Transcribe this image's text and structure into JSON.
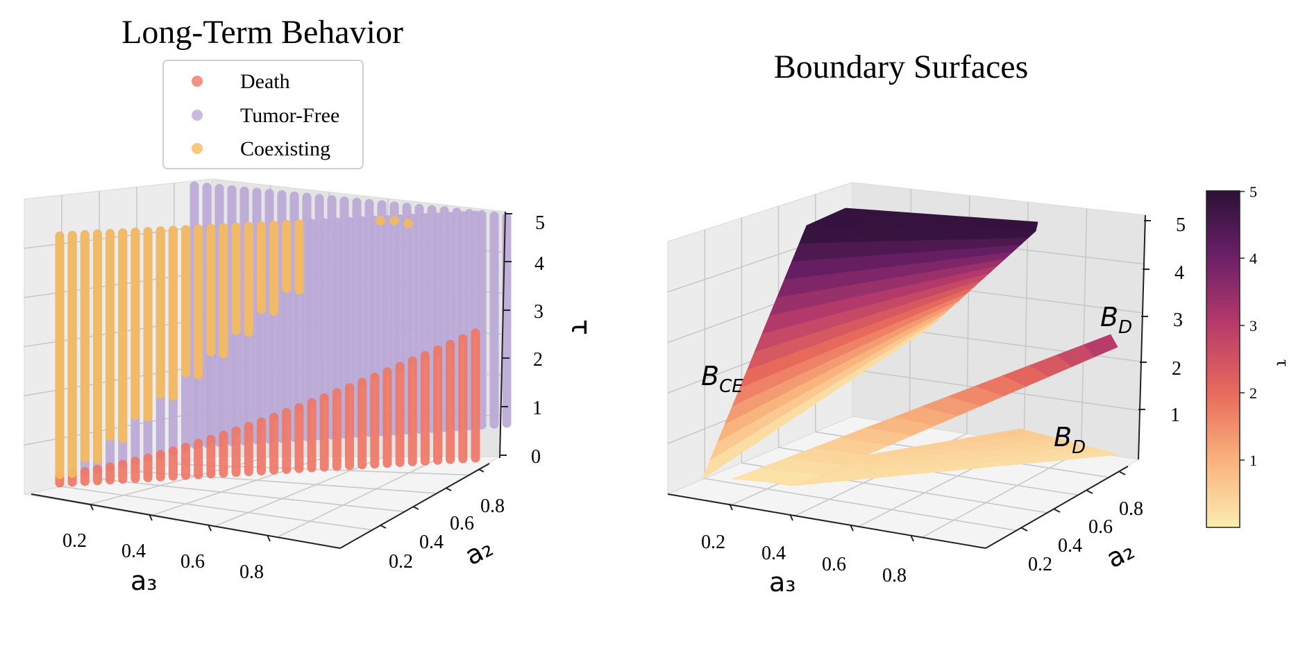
{
  "chart_data": [
    {
      "type": "scatter",
      "projection": "3d",
      "title": "Long-Term Behavior",
      "xlabel": "a₃",
      "ylabel": "a₂",
      "zlabel": "τ",
      "xticks": [
        "0.2",
        "0.4",
        "0.6",
        "0.8"
      ],
      "yticks": [
        "0.2",
        "0.4",
        "0.6",
        "0.8"
      ],
      "zticks": [
        "0",
        "1",
        "2",
        "3",
        "4",
        "5"
      ],
      "xlim": [
        0,
        1
      ],
      "ylim": [
        0,
        1
      ],
      "zlim": [
        0,
        5
      ],
      "grid": true,
      "legend_position": "top-center",
      "series": [
        {
          "name": "Death",
          "color": "#ee7766"
        },
        {
          "name": "Tumor-Free",
          "color": "#bba8d6"
        },
        {
          "name": "Coexisting",
          "color": "#f5bb5e"
        }
      ]
    },
    {
      "type": "surface",
      "projection": "3d",
      "title": "Boundary Surfaces",
      "xlabel": "a₃",
      "ylabel": "a₂",
      "xticks": [
        "0.2",
        "0.4",
        "0.6",
        "0.8"
      ],
      "yticks": [
        "0.2",
        "0.4",
        "0.6",
        "0.8"
      ],
      "zticks": [
        "1",
        "2",
        "3",
        "4",
        "5"
      ],
      "xlim": [
        0,
        1
      ],
      "ylim": [
        0,
        1
      ],
      "zlim": [
        0,
        5
      ],
      "grid": true,
      "colormap": "magma_r",
      "colorbar": {
        "label": "τ",
        "ticks": [
          "1",
          "2",
          "3",
          "4",
          "5"
        ],
        "range": [
          0,
          5
        ]
      },
      "annotations": [
        {
          "base": "B",
          "sub": "CE"
        },
        {
          "base": "B",
          "sub": "D"
        },
        {
          "base": "B",
          "sub": "D"
        }
      ]
    }
  ]
}
